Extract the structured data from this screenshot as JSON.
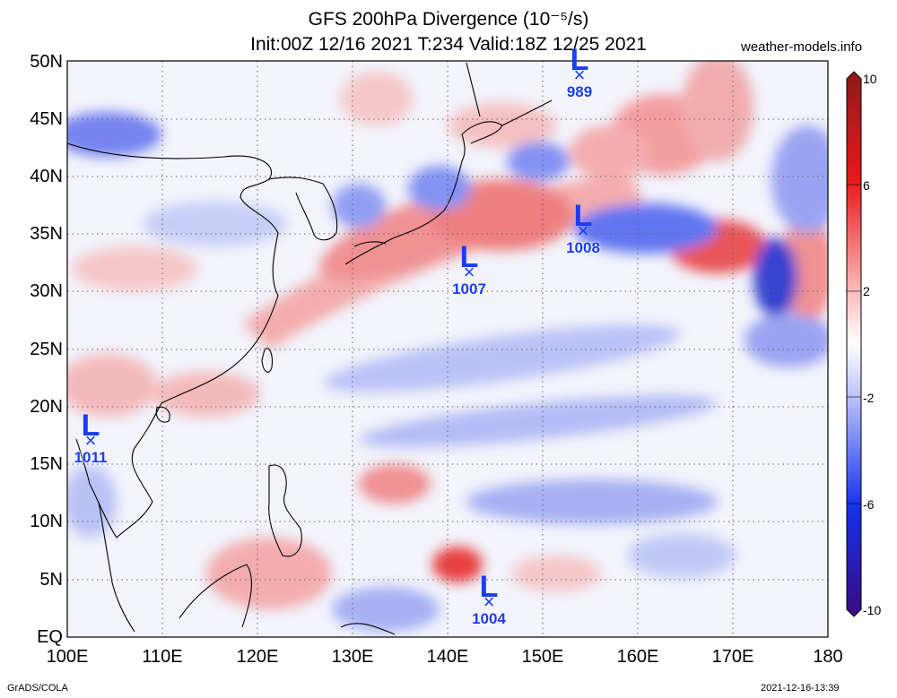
{
  "title": {
    "line1": "GFS 200hPa Divergence (10⁻⁵/s)",
    "line2": "Init:00Z 12/16 2021 T:234 Valid:18Z 12/25 2021",
    "site": "weather-models.info"
  },
  "map": {
    "lat_labels": [
      "50N",
      "45N",
      "40N",
      "35N",
      "30N",
      "25N",
      "20N",
      "15N",
      "10N",
      "5N",
      "EQ"
    ],
    "lon_labels": [
      "100E",
      "110E",
      "120E",
      "130E",
      "140E",
      "150E",
      "160E",
      "170E",
      "180"
    ],
    "lat_range": [
      0,
      50
    ],
    "lon_range": [
      100,
      180
    ],
    "grid_lines": "dotted",
    "colors": {
      "positive": "#e8191c",
      "negative": "#1530e8",
      "neutral": "#ffffff",
      "low_marker": "#1a3df0"
    }
  },
  "colorbar": {
    "labels": [
      "10",
      "6",
      "2",
      "-2",
      "-6",
      "-10"
    ],
    "range": [
      -10,
      10
    ]
  },
  "lows": [
    {
      "label": "L",
      "pressure": "989",
      "lon": 154,
      "lat": 48.7
    },
    {
      "label": "L",
      "pressure": "1008",
      "lon": 155,
      "lat": 34.4
    },
    {
      "label": "L",
      "pressure": "1007",
      "lon": 142.3,
      "lat": 30.8
    },
    {
      "label": "L",
      "pressure": "1011",
      "lon": 102.3,
      "lat": 16.2
    },
    {
      "label": "L",
      "pressure": "1004",
      "lon": 144.6,
      "lat": 2.1
    }
  ],
  "credits": {
    "left": "GrADS/COLA",
    "right": "2021-12-16-13:39"
  }
}
